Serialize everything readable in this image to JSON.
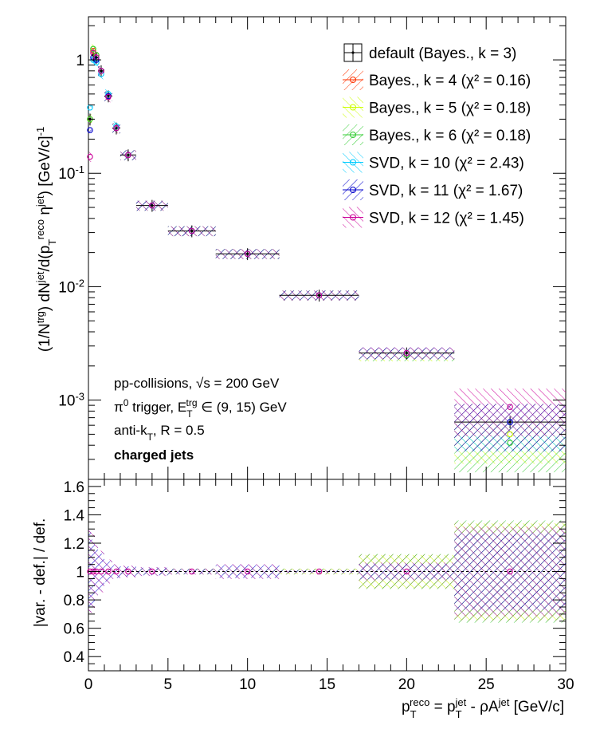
{
  "chart_data": {
    "type": "scatter",
    "top_panel": {
      "yscale": "log",
      "ylim": [
        0.0002,
        2.4
      ],
      "xlim": [
        0,
        30
      ],
      "ylabel": "(1/N^trg) dN^jet/d(p_T^reco η^jet) [GeV/c]^-1",
      "yticks": [
        "10^-3",
        "10^-2",
        "10^-1",
        "1"
      ],
      "bins": [
        {
          "lo": 0.0,
          "hi": 0.2
        },
        {
          "lo": 0.2,
          "hi": 0.4
        },
        {
          "lo": 0.4,
          "hi": 0.6
        },
        {
          "lo": 0.6,
          "hi": 1.0
        },
        {
          "lo": 1.0,
          "hi": 1.5
        },
        {
          "lo": 1.5,
          "hi": 2.0
        },
        {
          "lo": 2.0,
          "hi": 3.0
        },
        {
          "lo": 3.0,
          "hi": 5.0
        },
        {
          "lo": 5.0,
          "hi": 8.0
        },
        {
          "lo": 8.0,
          "hi": 12.0
        },
        {
          "lo": 12.0,
          "hi": 17.0
        },
        {
          "lo": 17.0,
          "hi": 23.0
        },
        {
          "lo": 23.0,
          "hi": 30.0
        }
      ],
      "x": [
        0.1,
        0.3,
        0.5,
        0.8,
        1.25,
        1.75,
        2.5,
        4.0,
        6.5,
        10.0,
        14.5,
        20.0,
        26.5
      ],
      "default": [
        0.3,
        1.1,
        1.05,
        0.8,
        0.48,
        0.25,
        0.145,
        0.052,
        0.031,
        0.0195,
        0.0084,
        0.0026,
        0.00064
      ],
      "series": [
        {
          "name": "Bayes., k = 4 (χ² = 0.16)",
          "color": "#ff3300",
          "values": [
            0.3,
            1.2,
            1.1,
            0.8,
            0.48,
            0.25,
            0.145,
            0.052,
            0.031,
            0.0195,
            0.0084,
            0.0026,
            0.00064
          ]
        },
        {
          "name": "Bayes., k = 5 (χ² = 0.18)",
          "color": "#ccff00",
          "values": [
            0.3,
            1.25,
            1.1,
            0.8,
            0.48,
            0.25,
            0.145,
            0.052,
            0.031,
            0.0195,
            0.0084,
            0.0025,
            0.0005
          ]
        },
        {
          "name": "Bayes., k = 6 (χ² = 0.18)",
          "color": "#33cc33",
          "values": [
            0.3,
            1.25,
            1.1,
            0.8,
            0.48,
            0.25,
            0.145,
            0.052,
            0.031,
            0.0195,
            0.0084,
            0.0025,
            0.00042
          ]
        },
        {
          "name": "SVD, k = 10 (χ² = 2.43)",
          "color": "#00ccff",
          "values": [
            0.38,
            1.0,
            0.95,
            0.75,
            0.5,
            0.26,
            0.145,
            0.052,
            0.031,
            0.0195,
            0.0084,
            0.0026,
            0.00064
          ]
        },
        {
          "name": "SVD, k = 11 (χ² = 1.67)",
          "color": "#0000cc",
          "values": [
            0.24,
            1.05,
            1.0,
            0.8,
            0.48,
            0.25,
            0.145,
            0.052,
            0.031,
            0.0195,
            0.0084,
            0.0026,
            0.00064
          ]
        },
        {
          "name": "SVD, k = 12 (χ² = 1.45)",
          "color": "#cc0099",
          "values": [
            0.14,
            1.15,
            1.05,
            0.8,
            0.47,
            0.25,
            0.145,
            0.052,
            0.031,
            0.0195,
            0.0084,
            0.0026,
            0.00087
          ]
        }
      ],
      "default_label": "default (Bayes., k = 3)",
      "annotations": [
        "pp-collisions, √s = 200 GeV",
        "π⁰ trigger, E_T^trg ∈ (9, 15) GeV",
        "anti-k_T, R = 0.5",
        "charged jets"
      ]
    },
    "bottom_panel": {
      "ylabel": "|var. - def.| / def.",
      "ylim": [
        0.3,
        1.65
      ],
      "xlim": [
        0,
        30
      ],
      "yticks": [
        "0.4",
        "0.6",
        "0.8",
        "1",
        "1.2",
        "1.4",
        "1.6"
      ],
      "ratio": [
        1,
        1,
        1,
        1,
        1,
        1,
        1,
        1,
        1,
        1,
        1,
        1,
        1
      ],
      "band_halfwidth": {
        "bayes": [
          0.02,
          0.02,
          0.02,
          0.02,
          0.02,
          0.02,
          0.02,
          0.02,
          0.02,
          0.02,
          0.02,
          0.12,
          0.35
        ],
        "svd": [
          0.3,
          0.25,
          0.18,
          0.14,
          0.08,
          0.05,
          0.04,
          0.03,
          0.02,
          0.05,
          0.01,
          0.06,
          0.3
        ]
      }
    },
    "xlabel": "p_T^reco = p_T^jet - ρA^jet [GeV/c]",
    "xticks": [
      "0",
      "5",
      "10",
      "15",
      "20",
      "25",
      "30"
    ],
    "legend_position": "top-right"
  }
}
